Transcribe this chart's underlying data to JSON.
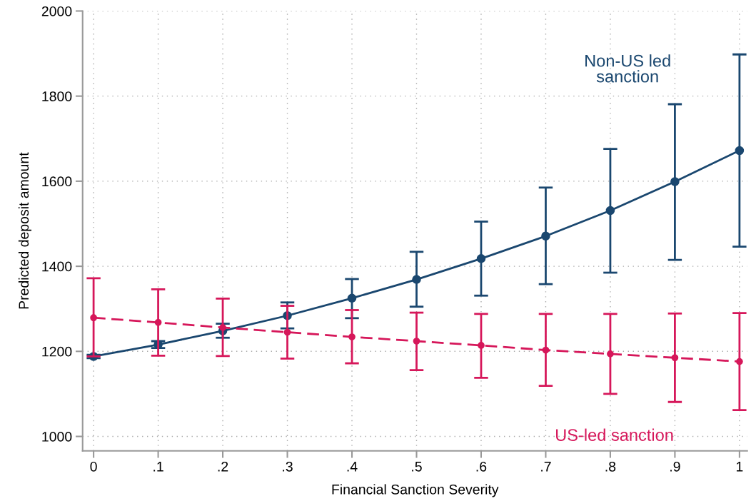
{
  "chart_data": {
    "type": "line",
    "xlabel": "Financial Sanction Severity",
    "ylabel": "Predicted deposit amount",
    "x": [
      0,
      0.1,
      0.2,
      0.3,
      0.4,
      0.5,
      0.6,
      0.7,
      0.8,
      0.9,
      1
    ],
    "series": [
      {
        "name": "Non-US led\nsanction",
        "color": "#1a476f",
        "line_style": "solid",
        "values": [
          1188,
          1216,
          1248,
          1284,
          1325,
          1369,
          1418,
          1471,
          1531,
          1599,
          1672
        ],
        "errors": [
          [
            1184,
            1192
          ],
          [
            1208,
            1224
          ],
          [
            1232,
            1265
          ],
          [
            1254,
            1315
          ],
          [
            1278,
            1370
          ],
          [
            1305,
            1434
          ],
          [
            1331,
            1505
          ],
          [
            1358,
            1585
          ],
          [
            1385,
            1676
          ],
          [
            1415,
            1781
          ],
          [
            1446,
            1898
          ]
        ]
      },
      {
        "name": "US-led sanction",
        "color": "#d6175a",
        "line_style": "dashed",
        "values": [
          1279,
          1268,
          1256,
          1245,
          1234,
          1224,
          1214,
          1203,
          1194,
          1185,
          1176
        ],
        "errors": [
          [
            1188,
            1372
          ],
          [
            1190,
            1346
          ],
          [
            1189,
            1324
          ],
          [
            1183,
            1307
          ],
          [
            1172,
            1297
          ],
          [
            1156,
            1291
          ],
          [
            1138,
            1288
          ],
          [
            1119,
            1288
          ],
          [
            1100,
            1288
          ],
          [
            1081,
            1289
          ],
          [
            1062,
            1290
          ]
        ]
      }
    ],
    "marker": "circle",
    "grid": true,
    "legend": false,
    "xlim": [
      -0.017,
      1.012
    ],
    "ylim": [
      966,
      2000
    ],
    "xticks": [
      0,
      {
        "value": 0.1,
        "label": ".1"
      },
      {
        "value": 0.2,
        "label": ".2"
      },
      {
        "value": 0.3,
        "label": ".3"
      },
      {
        "value": 0.4,
        "label": ".4"
      },
      {
        "value": 0.5,
        "label": ".5"
      },
      {
        "value": 0.6,
        "label": ".6"
      },
      {
        "value": 0.7,
        "label": ".7"
      },
      {
        "value": 0.8,
        "label": ".8"
      },
      {
        "value": 0.9,
        "label": ".9"
      },
      1
    ],
    "yticks": [
      1000,
      1200,
      1400,
      1600,
      1800,
      2000
    ]
  }
}
